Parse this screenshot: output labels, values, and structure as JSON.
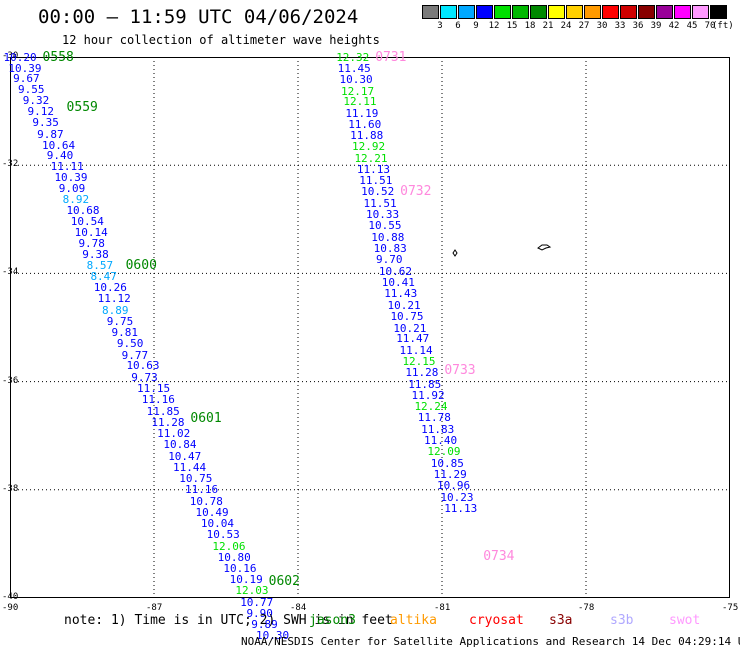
{
  "title": "00:00 – 11:59 UTC 04/06/2024",
  "subtitle": "12 hour collection of altimeter wave heights",
  "legend": {
    "labels": [
      "3",
      "6",
      "9",
      "12",
      "15",
      "18",
      "21",
      "24",
      "27",
      "30",
      "33",
      "36",
      "39",
      "42",
      "45",
      "70"
    ],
    "unit": "(ft)",
    "colors": [
      "#7a7a7a",
      "#00e8ff",
      "#00a8ff",
      "#0000ff",
      "#00e000",
      "#00b800",
      "#008800",
      "#ffff00",
      "#ffd000",
      "#ff9a00",
      "#ff0000",
      "#d00000",
      "#880000",
      "#990099",
      "#ff00ff",
      "#ff99ff",
      "#000000"
    ]
  },
  "axes": {
    "lat_labels": [
      "-30",
      "-32",
      "-34",
      "-36",
      "-38",
      "-40"
    ],
    "lon_labels": [
      "-90",
      "-87",
      "-84",
      "-81",
      "-78",
      "-75"
    ]
  },
  "tracks": [
    {
      "times": [
        {
          "label": "0558",
          "lat": -30.0
        },
        {
          "label": "0559",
          "lat": -30.92
        },
        {
          "label": "0600",
          "lat": -33.85
        },
        {
          "label": "0601",
          "lat": -36.68
        },
        {
          "label": "0602",
          "lat": -39.68
        }
      ],
      "points": [
        {
          "v": "10.20",
          "lon": -89.78,
          "lat": -30.0
        },
        {
          "v": "10.39",
          "lon": -89.68,
          "lat": -30.2
        },
        {
          "v": "9.67",
          "lon": -89.58,
          "lat": -30.39
        },
        {
          "v": "9.55",
          "lon": -89.48,
          "lat": -30.6
        },
        {
          "v": "9.32",
          "lon": -89.38,
          "lat": -30.8
        },
        {
          "v": "9.12",
          "lon": -89.28,
          "lat": -31.0
        },
        {
          "v": "9.35",
          "lon": -89.18,
          "lat": -31.2
        },
        {
          "v": "9.87",
          "lon": -89.08,
          "lat": -31.42
        },
        {
          "v": "10.64",
          "lon": -88.98,
          "lat": -31.62
        },
        {
          "v": "9.40",
          "lon": -88.88,
          "lat": -31.82
        },
        {
          "v": "11.11",
          "lon": -88.8,
          "lat": -32.02
        },
        {
          "v": "10.39",
          "lon": -88.72,
          "lat": -32.22
        },
        {
          "v": "9.09",
          "lon": -88.63,
          "lat": -32.43
        },
        {
          "v": "8.92",
          "lon": -88.55,
          "lat": -32.63
        },
        {
          "v": "10.68",
          "lon": -88.47,
          "lat": -32.83
        },
        {
          "v": "10.54",
          "lon": -88.38,
          "lat": -33.04
        },
        {
          "v": "10.14",
          "lon": -88.3,
          "lat": -33.24
        },
        {
          "v": "9.78",
          "lon": -88.22,
          "lat": -33.44
        },
        {
          "v": "9.38",
          "lon": -88.14,
          "lat": -33.65
        },
        {
          "v": "8.57",
          "lon": -88.05,
          "lat": -33.85
        },
        {
          "v": "8.47",
          "lon": -87.97,
          "lat": -34.05
        },
        {
          "v": "10.26",
          "lon": -87.9,
          "lat": -34.26
        },
        {
          "v": "11.12",
          "lon": -87.82,
          "lat": -34.46
        },
        {
          "v": "8.89",
          "lon": -87.73,
          "lat": -34.67
        },
        {
          "v": "9.75",
          "lon": -87.63,
          "lat": -34.88
        },
        {
          "v": "9.81",
          "lon": -87.53,
          "lat": -35.08
        },
        {
          "v": "9.50",
          "lon": -87.42,
          "lat": -35.29
        },
        {
          "v": "9.77",
          "lon": -87.32,
          "lat": -35.5
        },
        {
          "v": "10.63",
          "lon": -87.22,
          "lat": -35.7
        },
        {
          "v": "9.73",
          "lon": -87.12,
          "lat": -35.91
        },
        {
          "v": "11.15",
          "lon": -87.0,
          "lat": -36.12
        },
        {
          "v": "11.16",
          "lon": -86.9,
          "lat": -36.33
        },
        {
          "v": "11.85",
          "lon": -86.8,
          "lat": -36.54
        },
        {
          "v": "11.28",
          "lon": -86.7,
          "lat": -36.74
        },
        {
          "v": "11.02",
          "lon": -86.58,
          "lat": -36.95
        },
        {
          "v": "10.84",
          "lon": -86.45,
          "lat": -37.16
        },
        {
          "v": "10.47",
          "lon": -86.35,
          "lat": -37.37
        },
        {
          "v": "11.44",
          "lon": -86.25,
          "lat": -37.58
        },
        {
          "v": "10.75",
          "lon": -86.12,
          "lat": -37.78
        },
        {
          "v": "11.16",
          "lon": -86.0,
          "lat": -37.99
        },
        {
          "v": "10.78",
          "lon": -85.9,
          "lat": -38.2
        },
        {
          "v": "10.49",
          "lon": -85.78,
          "lat": -38.41
        },
        {
          "v": "10.04",
          "lon": -85.67,
          "lat": -38.61
        },
        {
          "v": "10.53",
          "lon": -85.55,
          "lat": -38.82
        },
        {
          "v": "12.06",
          "lon": -85.43,
          "lat": -39.03
        },
        {
          "v": "10.80",
          "lon": -85.32,
          "lat": -39.24
        },
        {
          "v": "10.16",
          "lon": -85.2,
          "lat": -39.45
        },
        {
          "v": "10.19",
          "lon": -85.07,
          "lat": -39.65
        },
        {
          "v": "12.03",
          "lon": -84.95,
          "lat": -39.86
        },
        {
          "v": "10.77",
          "lon": -84.85,
          "lat": -40.07
        },
        {
          "v": "9.90",
          "lon": -84.72,
          "lat": -40.28
        },
        {
          "v": "9.89",
          "lon": -84.62,
          "lat": -40.48
        },
        {
          "v": "10.30",
          "lon": -84.52,
          "lat": -40.69
        }
      ]
    },
    {
      "times": [
        {
          "label": "0731",
          "lat": -30.0
        },
        {
          "label": "0732",
          "lat": -32.48
        },
        {
          "label": "0733",
          "lat": -35.78
        },
        {
          "label": "0734",
          "lat": -39.23
        }
      ],
      "points": [
        {
          "v": "12.32",
          "lon": -82.85,
          "lat": -30.0
        },
        {
          "v": "11.45",
          "lon": -82.82,
          "lat": -30.2
        },
        {
          "v": "10.30",
          "lon": -82.78,
          "lat": -30.41
        },
        {
          "v": "12.17",
          "lon": -82.75,
          "lat": -30.62
        },
        {
          "v": "12.11",
          "lon": -82.7,
          "lat": -30.82
        },
        {
          "v": "11.19",
          "lon": -82.66,
          "lat": -31.03
        },
        {
          "v": "11.60",
          "lon": -82.6,
          "lat": -31.24
        },
        {
          "v": "11.88",
          "lon": -82.56,
          "lat": -31.44
        },
        {
          "v": "12.92",
          "lon": -82.52,
          "lat": -31.65
        },
        {
          "v": "12.21",
          "lon": -82.47,
          "lat": -31.86
        },
        {
          "v": "11.13",
          "lon": -82.42,
          "lat": -32.07
        },
        {
          "v": "11.51",
          "lon": -82.37,
          "lat": -32.28
        },
        {
          "v": "10.52",
          "lon": -82.33,
          "lat": -32.48
        },
        {
          "v": "11.51",
          "lon": -82.28,
          "lat": -32.69
        },
        {
          "v": "10.33",
          "lon": -82.23,
          "lat": -32.9
        },
        {
          "v": "10.55",
          "lon": -82.18,
          "lat": -33.11
        },
        {
          "v": "10.88",
          "lon": -82.12,
          "lat": -33.32
        },
        {
          "v": "10.83",
          "lon": -82.07,
          "lat": -33.53
        },
        {
          "v": "9.70",
          "lon": -82.02,
          "lat": -33.74
        },
        {
          "v": "10.62",
          "lon": -81.96,
          "lat": -33.95
        },
        {
          "v": "10.41",
          "lon": -81.9,
          "lat": -34.16
        },
        {
          "v": "11.43",
          "lon": -81.85,
          "lat": -34.37
        },
        {
          "v": "10.21",
          "lon": -81.78,
          "lat": -34.58
        },
        {
          "v": "10.75",
          "lon": -81.72,
          "lat": -34.79
        },
        {
          "v": "10.21",
          "lon": -81.66,
          "lat": -35.0
        },
        {
          "v": "11.47",
          "lon": -81.6,
          "lat": -35.2
        },
        {
          "v": "11.14",
          "lon": -81.53,
          "lat": -35.41
        },
        {
          "v": "12.15",
          "lon": -81.47,
          "lat": -35.62
        },
        {
          "v": "11.28",
          "lon": -81.41,
          "lat": -35.83
        },
        {
          "v": "11.85",
          "lon": -81.35,
          "lat": -36.04
        },
        {
          "v": "11.92",
          "lon": -81.28,
          "lat": -36.25
        },
        {
          "v": "12.24",
          "lon": -81.22,
          "lat": -36.46
        },
        {
          "v": "11.78",
          "lon": -81.15,
          "lat": -36.66
        },
        {
          "v": "11.83",
          "lon": -81.08,
          "lat": -36.87
        },
        {
          "v": "11.40",
          "lon": -81.02,
          "lat": -37.08
        },
        {
          "v": "12.09",
          "lon": -80.95,
          "lat": -37.29
        },
        {
          "v": "10.85",
          "lon": -80.88,
          "lat": -37.5
        },
        {
          "v": "11.29",
          "lon": -80.82,
          "lat": -37.71
        },
        {
          "v": "10.96",
          "lon": -80.75,
          "lat": -37.92
        },
        {
          "v": "10.23",
          "lon": -80.68,
          "lat": -38.13
        },
        {
          "v": "11.13",
          "lon": -80.6,
          "lat": -38.34
        }
      ]
    }
  ],
  "note": "note: 1) Time is in UTC; 2) SWH is in feet",
  "satellites": [
    {
      "name": "jason3",
      "color": "#008800"
    },
    {
      "name": "altika",
      "color": "#ff9a00"
    },
    {
      "name": "cryosat",
      "color": "#ff0000"
    },
    {
      "name": "s3a",
      "color": "#880000"
    },
    {
      "name": "s3b",
      "color": "#b0a8ff"
    },
    {
      "name": "swot",
      "color": "#ff99ff"
    }
  ],
  "credit": "NOAA/NESDIS Center for Satellite Applications and Research   14 Dec 04:29:14 UTC 2024"
}
